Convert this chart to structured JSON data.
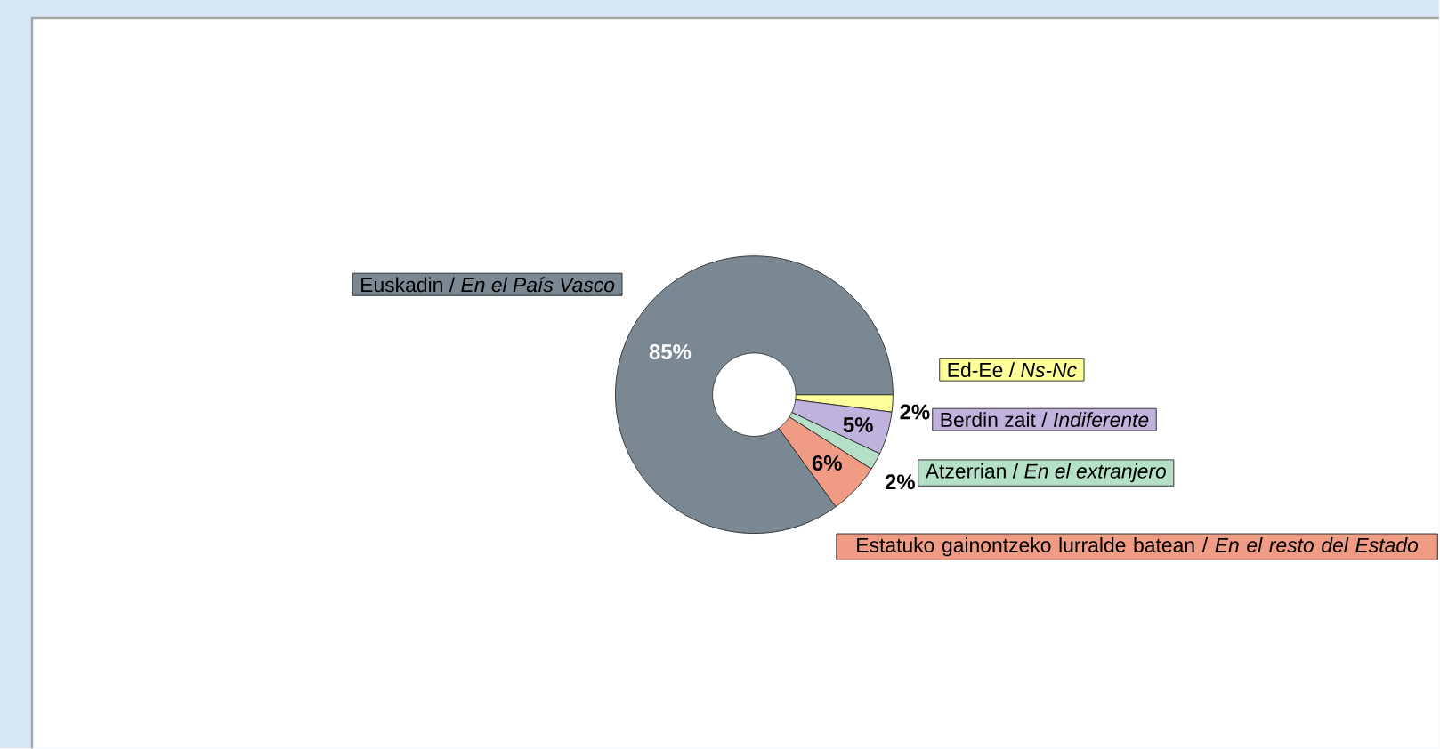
{
  "chart_data": {
    "type": "donut",
    "categories": [
      "Ed-Ee / *Ns-Nc*",
      "Berdin zait / *Indiferente*",
      "Atzerrian / *En el extranjero*",
      "Estatuko gainontzeko lurralde batean / *En el resto del Estado*",
      "Euskadin / *En el País Vasco*"
    ],
    "values": [
      2,
      5,
      2,
      6,
      85
    ],
    "value_labels": [
      "2%",
      "5%",
      "2%",
      "6%",
      "85%"
    ],
    "colors": [
      "#ffff99",
      "#bfb3dd",
      "#b3e0c6",
      "#f09c84",
      "#7a8893"
    ]
  }
}
